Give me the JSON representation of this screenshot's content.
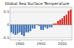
{
  "chart_data": {
    "type": "bar",
    "title": "Global Sea Surface Temperature",
    "x": [
      1880,
      1885,
      1890,
      1895,
      1900,
      1905,
      1910,
      1915,
      1920,
      1925,
      1930,
      1935,
      1940,
      1945,
      1950,
      1955,
      1960,
      1965,
      1970,
      1975,
      1980,
      1985,
      1990,
      1995,
      2000,
      2005,
      2010,
      2015,
      2020
    ],
    "values": [
      -0.3,
      -0.35,
      -0.4,
      -0.35,
      -0.3,
      -0.4,
      -0.45,
      -0.3,
      -0.3,
      -0.25,
      -0.15,
      -0.15,
      0.0,
      -0.05,
      -0.2,
      -0.2,
      -0.1,
      -0.15,
      -0.1,
      -0.1,
      0.05,
      0.05,
      0.15,
      0.2,
      0.25,
      0.35,
      0.4,
      0.55,
      0.6
    ],
    "colors": [
      "#4575b4",
      "#4575b4",
      "#4575b4",
      "#4575b4",
      "#4575b4",
      "#4575b4",
      "#4575b4",
      "#4575b4",
      "#4575b4",
      "#4575b4",
      "#4575b4",
      "#4575b4",
      "#d73027",
      "#4575b4",
      "#4575b4",
      "#4575b4",
      "#4575b4",
      "#4575b4",
      "#4575b4",
      "#4575b4",
      "#d73027",
      "#d73027",
      "#d73027",
      "#d73027",
      "#d73027",
      "#d73027",
      "#d73027",
      "#d73027",
      "#d73027"
    ],
    "xlim": [
      1877,
      2023
    ],
    "xticks": [
      1900,
      1950,
      2000
    ],
    "ylim": [
      -0.6,
      0.7
    ],
    "yticks": [
      -0.5,
      0,
      0.5
    ],
    "grid": true
  }
}
